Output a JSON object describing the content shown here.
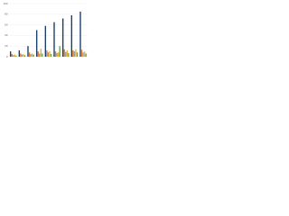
{
  "chart_data": {
    "type": "bar",
    "categories": [
      null,
      null,
      null,
      null,
      null,
      null,
      null,
      null,
      null
    ],
    "series": [
      {
        "color": "#1d3f6e",
        "values": [
          10,
          12,
          20,
          50,
          58,
          65,
          72,
          78,
          85
        ]
      },
      {
        "color": "#e07b2a",
        "values": [
          5,
          6,
          8,
          10,
          12,
          10,
          14,
          12,
          13
        ]
      },
      {
        "color": "#9a9a9a",
        "values": [
          3,
          4,
          5,
          6,
          8,
          7,
          9,
          10,
          8
        ]
      },
      {
        "color": "#e8b830",
        "values": [
          4,
          5,
          6,
          15,
          10,
          8,
          12,
          14,
          10
        ]
      },
      {
        "color": "#6aa84f",
        "values": [
          2,
          3,
          4,
          6,
          5,
          20,
          7,
          8,
          6
        ]
      }
    ],
    "ylim": [
      0,
      100
    ],
    "yticks": [
      0,
      20,
      40,
      60,
      80,
      100
    ],
    "grid": true
  }
}
